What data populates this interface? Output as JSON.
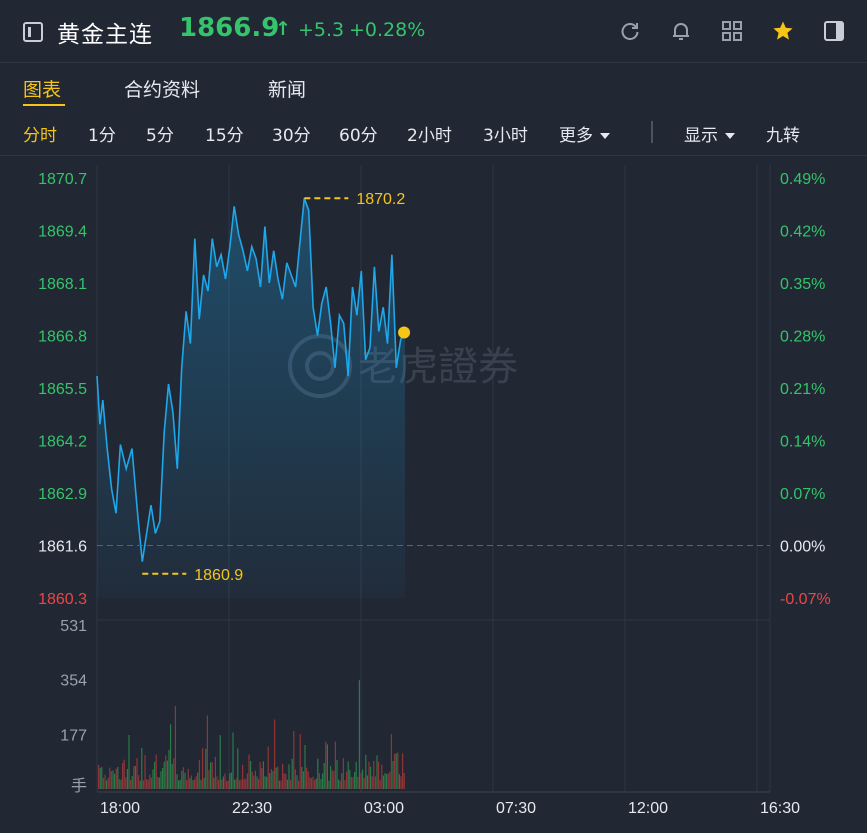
{
  "header": {
    "title": "黄金主连",
    "price": "1866.9",
    "arrow": "↑",
    "change": "+5.3",
    "change_pct": "+0.28%",
    "icons": [
      "sidebar-toggle-icon",
      "refresh-icon",
      "bell-icon",
      "grid-icon",
      "star-icon",
      "panel-icon"
    ]
  },
  "tabs": [
    {
      "label": "图表",
      "active": true
    },
    {
      "label": "合约资料",
      "active": false
    },
    {
      "label": "新闻",
      "active": false
    }
  ],
  "periods": [
    {
      "label": "分时",
      "active": true
    },
    {
      "label": "1分"
    },
    {
      "label": "5分"
    },
    {
      "label": "15分"
    },
    {
      "label": "30分"
    },
    {
      "label": "60分"
    },
    {
      "label": "2小时"
    },
    {
      "label": "3小时"
    },
    {
      "label": "更多"
    }
  ],
  "options": {
    "display": "显示",
    "nine_turn": "九转"
  },
  "watermark": "老虎證券",
  "colors": {
    "up": "#34c46b",
    "down": "#e84848",
    "neutral": "#e6e9ef",
    "accent": "#f5c518",
    "line": "#1ea7ea",
    "bg": "#212733"
  },
  "chart_data": {
    "type": "line",
    "price_ticks": [
      "1870.7",
      "1869.4",
      "1868.1",
      "1866.8",
      "1865.5",
      "1864.2",
      "1862.9",
      "1861.6",
      "1860.3"
    ],
    "pct_ticks": [
      "0.49%",
      "0.42%",
      "0.35%",
      "0.28%",
      "0.21%",
      "0.14%",
      "0.07%",
      "0.00%",
      "-0.07%"
    ],
    "ylim": [
      1860.3,
      1870.7
    ],
    "prev_close": 1861.6,
    "time_ticks": [
      "18:00",
      "22:30",
      "03:00",
      "07:30",
      "12:00",
      "16:30"
    ],
    "max_label": "1870.2",
    "min_label": "1860.9",
    "last_price": 1866.9,
    "series": {
      "x_hours": [
        0.0,
        0.1,
        0.2,
        0.35,
        0.5,
        0.65,
        0.8,
        1.0,
        1.2,
        1.4,
        1.55,
        1.7,
        1.85,
        2.0,
        2.15,
        2.3,
        2.45,
        2.6,
        2.75,
        2.9,
        3.05,
        3.2,
        3.35,
        3.5,
        3.65,
        3.8,
        3.95,
        4.1,
        4.25,
        4.4,
        4.55,
        4.7,
        4.85,
        5.0,
        5.15,
        5.3,
        5.45,
        5.6,
        5.75,
        5.9,
        6.05,
        6.2,
        6.35,
        6.5,
        6.65,
        6.8,
        6.95,
        7.1,
        7.25,
        7.4,
        7.55,
        7.7,
        7.85,
        8.0,
        8.15,
        8.3,
        8.45,
        8.6,
        8.75,
        8.9,
        9.05,
        9.2,
        9.35,
        9.5,
        9.65,
        9.8,
        9.95,
        10.1,
        10.25,
        10.4,
        10.55
      ],
      "price": [
        1865.8,
        1864.6,
        1865.2,
        1864.0,
        1863.0,
        1862.4,
        1864.1,
        1863.5,
        1864.0,
        1862.3,
        1861.2,
        1861.9,
        1862.6,
        1861.9,
        1862.2,
        1864.4,
        1865.6,
        1864.9,
        1863.5,
        1866.0,
        1867.4,
        1866.6,
        1869.2,
        1867.2,
        1868.3,
        1867.9,
        1869.2,
        1868.5,
        1868.8,
        1868.2,
        1869.0,
        1870.0,
        1869.3,
        1868.9,
        1868.4,
        1869.0,
        1868.7,
        1868.0,
        1869.5,
        1868.1,
        1868.9,
        1868.2,
        1867.7,
        1868.6,
        1868.3,
        1868.0,
        1869.1,
        1870.2,
        1869.9,
        1867.5,
        1866.8,
        1867.6,
        1868.0,
        1867.1,
        1866.0,
        1867.3,
        1867.1,
        1865.8,
        1868.0,
        1867.3,
        1868.4,
        1866.2,
        1866.5,
        1868.5,
        1866.9,
        1867.5,
        1866.6,
        1868.8,
        1866.0,
        1866.7,
        1866.9
      ]
    },
    "volume": {
      "ticks": [
        "531",
        "354",
        "177"
      ],
      "unit": "手",
      "ylim": [
        0,
        531
      ]
    }
  }
}
